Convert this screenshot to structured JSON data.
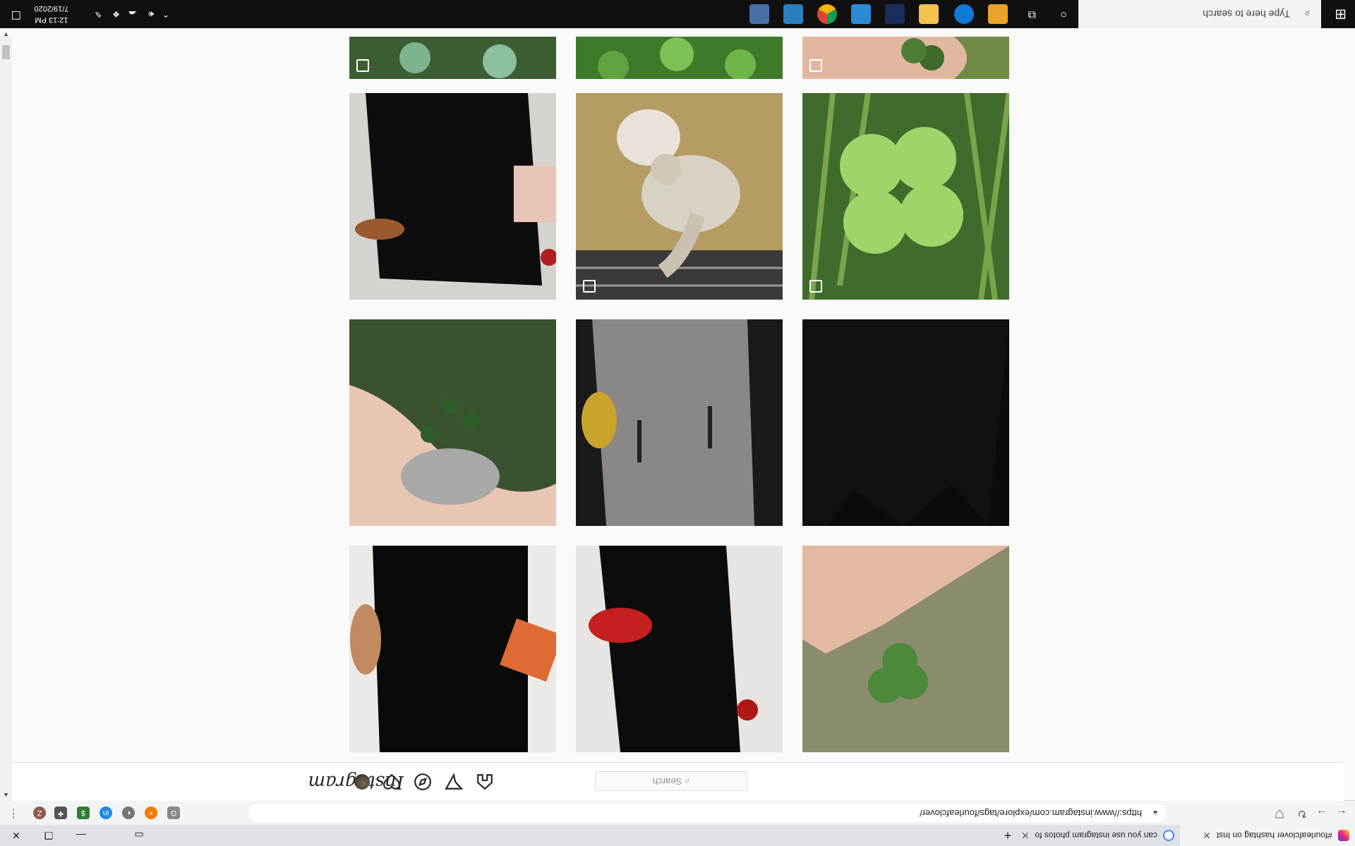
{
  "browser": {
    "tabs": [
      {
        "title": "#fourleafclover hashtag on Inst",
        "active": true
      },
      {
        "title": "can you use instagram photos fo",
        "active": false
      }
    ],
    "new_tab_label": "+",
    "address": "https://www.instagram.com/explore/tags/fourleafclover/",
    "lock_icon": "lock-icon",
    "extensions": [
      "G",
      "×",
      "◐",
      "in",
      "$",
      "puzzle",
      "Z"
    ]
  },
  "instagram": {
    "logo": "Instagram",
    "search_placeholder": "Search",
    "nav_icons": [
      "home-icon",
      "direct-icon",
      "explore-icon",
      "activity-icon",
      "profile-avatar"
    ]
  },
  "grid": {
    "rows": [
      [
        "clover-hand-partial",
        "clover-bed-partial",
        "clover-patch-partial"
      ],
      [
        "four-leaf-clover-grass",
        "gosling-in-hay",
        "black-dress-brown-heels"
      ],
      [
        "black-dress-dark",
        "tweed-dress-yellow-boots",
        "hand-holding-clovers"
      ],
      [
        "black-dress-orange-clutch",
        "black-dress-red-heels",
        "hand-holding-four-leaf-clover"
      ]
    ],
    "multi_post_tiles": [
      "clover-hand-partial",
      "clover-patch-partial",
      "four-leaf-clover-grass",
      "gosling-in-hay"
    ]
  },
  "taskbar": {
    "search_placeholder": "Type here to search",
    "time": "12:13 PM",
    "date": "7/19/2020"
  }
}
